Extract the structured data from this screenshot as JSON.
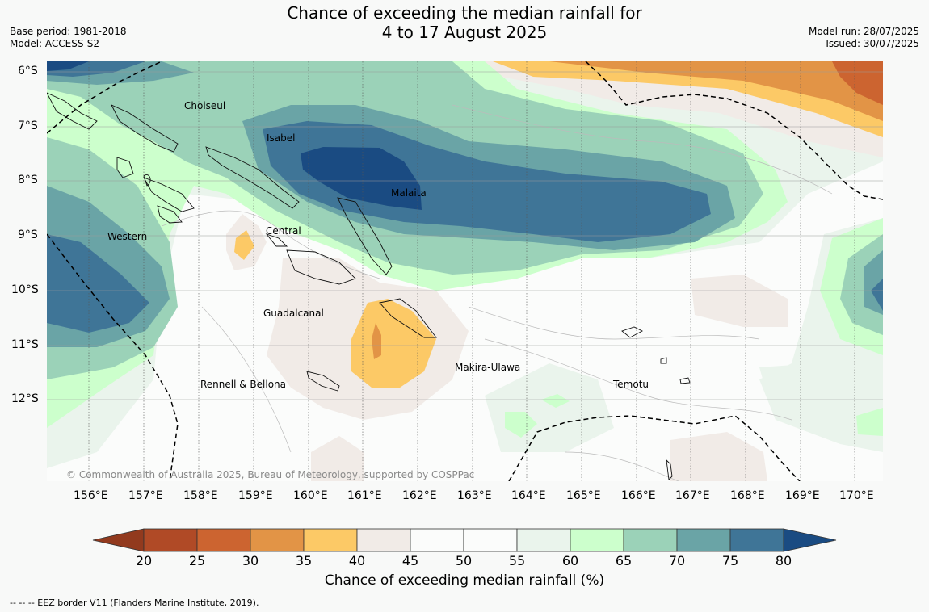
{
  "title": {
    "line1": "Chance of exceeding the median rainfall for",
    "line2": "4 to 17 August 2025"
  },
  "meta": {
    "base_period": "Base period: 1981-2018",
    "model": "Model: ACCESS-S2",
    "model_run": "Model run: 28/07/2025",
    "issued": "Issued: 30/07/2025"
  },
  "map": {
    "lat_labels": [
      "6°S",
      "7°S",
      "8°S",
      "9°S",
      "10°S",
      "11°S",
      "12°S"
    ],
    "lon_labels": [
      "156°E",
      "157°E",
      "158°E",
      "159°E",
      "160°E",
      "161°E",
      "162°E",
      "163°E",
      "164°E",
      "165°E",
      "166°E",
      "167°E",
      "168°E",
      "169°E",
      "170°E"
    ],
    "regions": {
      "choiseul": "Choiseul",
      "isabel": "Isabel",
      "malaita": "Malaita",
      "western": "Western",
      "central": "Central",
      "guadalcanal": "Guadalcanal",
      "makira": "Makira-Ulawa",
      "rennell": "Rennell & Bellona",
      "temotu": "Temotu"
    },
    "copyright": "© Commonwealth of Australia 2025, Bureau of Meteorology, supported by COSPPac"
  },
  "colorbar": {
    "ticks": [
      "20",
      "25",
      "30",
      "35",
      "40",
      "45",
      "50",
      "55",
      "60",
      "65",
      "70",
      "75",
      "80"
    ],
    "colors": {
      "lt20": "#923a1e",
      "20_25": "#b04a26",
      "25_30": "#cc6430",
      "30_35": "#e29446",
      "35_40": "#fcc966",
      "40_45": "#f1ebe7",
      "45_50": "#fbfcfb",
      "50_55": "#fbfcfb",
      "55_60": "#eaf4ec",
      "60_65": "#ccffcc",
      "65_70": "#9bd2b8",
      "70_75": "#6aa4a6",
      "75_80": "#3f7597",
      "gt80": "#1a4b82"
    },
    "label": "Chance of exceeding median rainfall (%)"
  },
  "footer": {
    "eez_note": "--  --  -- EEZ border V11 (Flanders Marine Institute, 2019)."
  }
}
